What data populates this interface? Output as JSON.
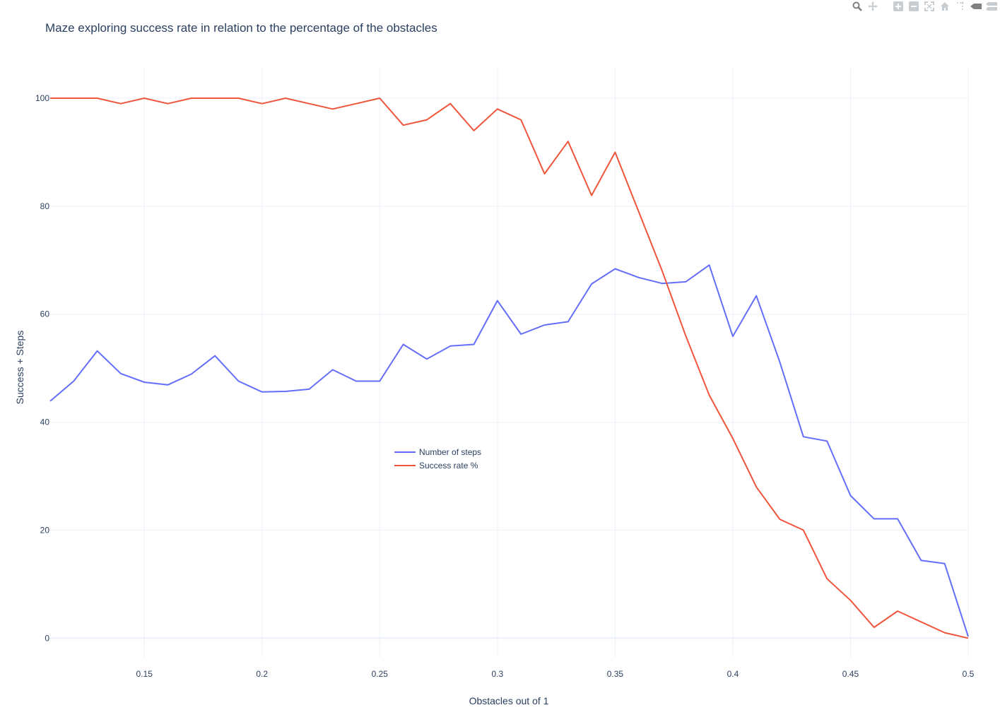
{
  "title": "Maze exploring success rate in relation to the percentage of the obstacles",
  "toolbar": {
    "buttons": [
      {
        "name": "zoom-icon"
      },
      {
        "name": "pan-icon"
      },
      {
        "name": "zoom-in-icon"
      },
      {
        "name": "zoom-out-icon"
      },
      {
        "name": "autoscale-icon"
      },
      {
        "name": "reset-axes-icon"
      },
      {
        "name": "spike-lines-icon"
      },
      {
        "name": "hover-closest-icon"
      },
      {
        "name": "hover-compare-icon"
      }
    ]
  },
  "chart_data": {
    "type": "line",
    "title": "Maze exploring success rate in relation to the percentage of the obstacles",
    "xlabel": "Obstacles out of 1",
    "ylabel": "Success + Steps",
    "xlim": [
      0.11,
      0.5
    ],
    "ylim": [
      -3.5,
      105.5
    ],
    "xticks": [
      0.15,
      0.2,
      0.25,
      0.3,
      0.35,
      0.4,
      0.45,
      0.5
    ],
    "xtick_labels": [
      "0.15",
      "0.2",
      "0.25",
      "0.3",
      "0.35",
      "0.4",
      "0.45",
      "0.5"
    ],
    "yticks": [
      0,
      20,
      40,
      60,
      80,
      100
    ],
    "ytick_labels": [
      "0",
      "20",
      "40",
      "60",
      "80",
      "100"
    ],
    "grid": true,
    "legend_position": "center-left",
    "x": [
      0.11,
      0.12,
      0.13,
      0.14,
      0.15,
      0.16,
      0.17,
      0.18,
      0.19,
      0.2,
      0.21,
      0.22,
      0.23,
      0.24,
      0.25,
      0.26,
      0.27,
      0.28,
      0.29,
      0.3,
      0.31,
      0.32,
      0.33,
      0.34,
      0.35,
      0.36,
      0.37,
      0.38,
      0.39,
      0.4,
      0.41,
      0.42,
      0.43,
      0.44,
      0.45,
      0.46,
      0.47,
      0.48,
      0.49,
      0.5
    ],
    "series": [
      {
        "name": "Number of steps",
        "color": "#636efa",
        "values": [
          43.9,
          47.6,
          53.2,
          49.0,
          47.4,
          46.9,
          48.9,
          52.3,
          47.6,
          45.6,
          45.7,
          46.1,
          49.7,
          47.6,
          47.6,
          54.4,
          51.7,
          54.1,
          54.4,
          62.5,
          56.3,
          58.0,
          58.6,
          65.6,
          68.4,
          66.8,
          65.7,
          66.0,
          69.1,
          55.9,
          63.4,
          51.1,
          37.3,
          36.5,
          26.4,
          22.1,
          22.1,
          14.4,
          13.8,
          0.3
        ]
      },
      {
        "name": "Success rate %",
        "color": "#ef553b",
        "values": [
          100,
          100,
          100,
          99,
          100,
          99,
          100,
          100,
          100,
          99,
          100,
          99,
          98,
          99,
          100,
          95,
          96,
          99,
          94,
          98,
          96,
          86,
          92,
          82,
          90,
          79,
          68,
          56,
          45,
          37,
          28,
          22,
          20,
          11,
          7,
          2,
          5,
          3,
          1,
          0
        ]
      }
    ]
  }
}
